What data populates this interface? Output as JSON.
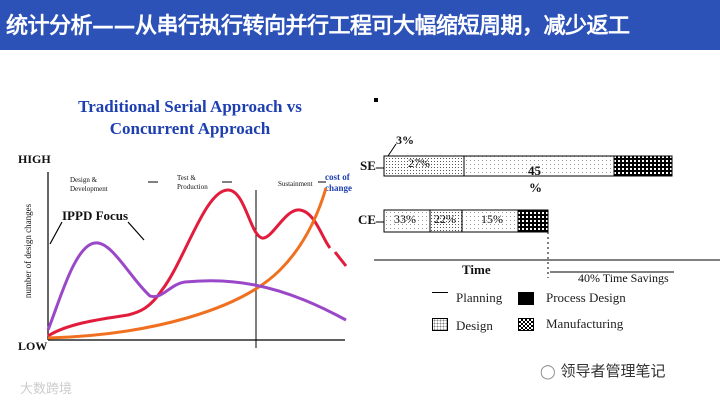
{
  "header": {
    "title": "统计分析——从串行执行转向并行工程可大幅缩短周期，减少返工",
    "bg_color": "#2c52b8"
  },
  "left_chart": {
    "title_line1": "Traditional Serial Approach  vs",
    "title_line2": "Concurrent Approach",
    "y_high": "HIGH",
    "y_low": "LOW",
    "y_axis_label": "number of design changes",
    "phase_design": "Design &\nDevelopment",
    "phase_test": "Test &\nProduction",
    "phase_sustain": "Sustainment",
    "cost_label": "cost of\nchange",
    "ippd_label": "IPPD Focus"
  },
  "right_chart": {
    "se_label": "SE",
    "ce_label": "CE",
    "pct_3": "3%",
    "se_27": "27%",
    "se_45": "45",
    "se_pct": "%",
    "ce_33": "33%",
    "ce_22": "22%",
    "ce_15": "15%",
    "time_label": "Time",
    "savings_label": "40% Time Savings",
    "legend": {
      "planning": "Planning",
      "design": "Design",
      "process_design": "Process Design",
      "manufacturing": "Manufacturing"
    }
  },
  "watermark": {
    "right": "领导者管理笔记",
    "left": "大数跨境"
  }
}
